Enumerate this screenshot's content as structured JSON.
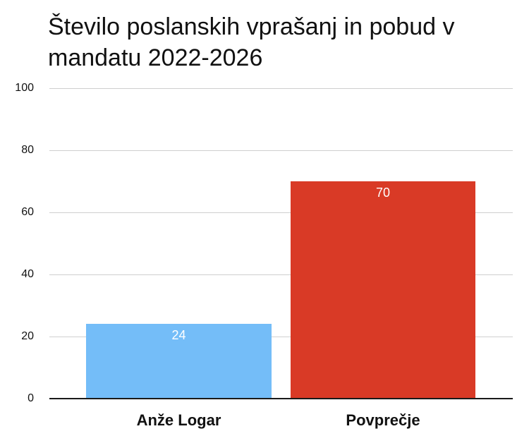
{
  "chart_data": {
    "type": "bar",
    "title": "Število poslanskih vprašanj in pobud v mandatu 2022-2026",
    "categories": [
      "Anže Logar",
      "Povprečje"
    ],
    "values": [
      24,
      70
    ],
    "colors": [
      "#74bdf8",
      "#d93a26"
    ],
    "data_labels": [
      "24",
      "70"
    ],
    "xlabel": "",
    "ylabel": "",
    "ylim": [
      0,
      100
    ],
    "yticks": [
      "100",
      "80",
      "60",
      "40",
      "20",
      "0"
    ],
    "grid": true,
    "legend": "none"
  }
}
